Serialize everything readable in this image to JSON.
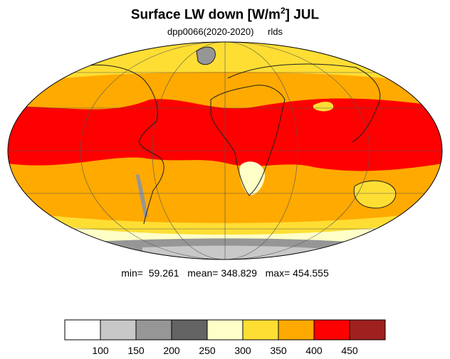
{
  "title": "Surface LW down [W/m",
  "title_sup": "2",
  "title_tail": "]  JUL",
  "subtitle_left": "dpp0066(2020-2020)",
  "subtitle_right": "rlds",
  "stats": "min=  59.261   mean= 348.829   max= 454.555",
  "colors": {
    "c0": "#ffffff",
    "c1": "#c8c8c8",
    "c2": "#969696",
    "c3": "#646464",
    "c4": "#ffffc8",
    "c5": "#ffde34",
    "c6": "#ffaa00",
    "c7": "#ff0000",
    "c8": "#a02020",
    "land": "#1e1e1e"
  },
  "chart_data": {
    "type": "heatmap",
    "projection": "mollweide",
    "field": "rlds",
    "month": "JUL",
    "stats": {
      "min": 59.261,
      "mean": 348.829,
      "max": 454.555
    },
    "colorbar": {
      "levels": [
        100,
        150,
        200,
        250,
        300,
        350,
        400,
        450
      ],
      "tick_labels": [
        "100",
        "150",
        "200",
        "250",
        "300",
        "350",
        "400",
        "450"
      ],
      "colors": [
        "#ffffff",
        "#c8c8c8",
        "#969696",
        "#646464",
        "#ffffc8",
        "#ffde34",
        "#ffaa00",
        "#ff0000",
        "#a02020"
      ]
    },
    "grid": true
  }
}
